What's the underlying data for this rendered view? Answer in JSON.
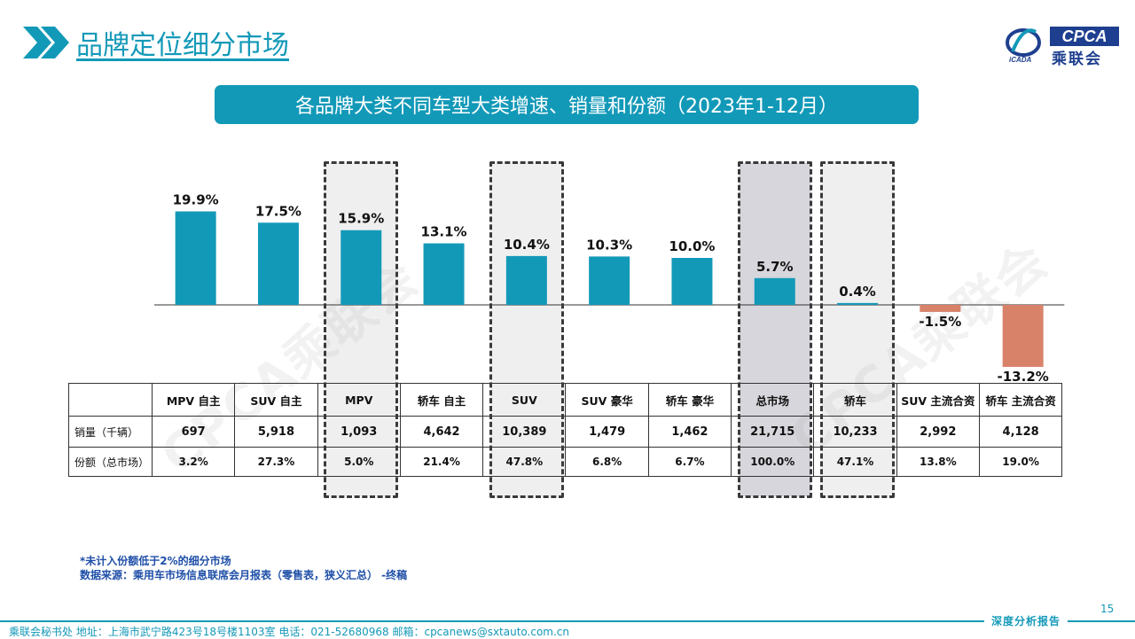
{
  "header": {
    "title": "品牌定位细分市场",
    "logo_text": "CPCA",
    "logo_sub": "乘联会",
    "logo_italic": "iCADA"
  },
  "banner": {
    "text": "各品牌大类不同车型大类增速、销量和份额（2023年1-12月）"
  },
  "watermark": "CPCA乘联会",
  "colors": {
    "positive": "#1399b8",
    "negative": "#d9826a",
    "highlight_light": "#efefef",
    "highlight_dark": "#d6d6dc"
  },
  "chart_data": {
    "type": "bar",
    "categories": [
      "MPV 自主",
      "SUV 自主",
      "MPV",
      "轿车 自主",
      "SUV",
      "SUV 豪华",
      "轿车 豪华",
      "总市场",
      "轿车",
      "SUV 主流合资",
      "轿车 主流合资"
    ],
    "values": [
      19.9,
      17.5,
      15.9,
      13.1,
      10.4,
      10.3,
      10.0,
      5.7,
      0.4,
      -1.5,
      -13.2
    ],
    "value_labels": [
      "19.9%",
      "17.5%",
      "15.9%",
      "13.1%",
      "10.4%",
      "10.3%",
      "10.0%",
      "5.7%",
      "0.4%",
      "-1.5%",
      "-13.2%"
    ],
    "unit": "%",
    "highlighted": [
      "MPV",
      "SUV",
      "总市场",
      "轿车"
    ]
  },
  "table": {
    "rows": [
      {
        "label": "销量（千辆）",
        "values": [
          "697",
          "5,918",
          "1,093",
          "4,642",
          "10,389",
          "1,479",
          "1,462",
          "21,715",
          "10,233",
          "2,992",
          "4,128"
        ]
      },
      {
        "label": "份额（总市场）",
        "values": [
          "3.2%",
          "27.3%",
          "5.0%",
          "21.4%",
          "47.8%",
          "6.8%",
          "6.7%",
          "100.0%",
          "47.1%",
          "13.8%",
          "19.0%"
        ]
      }
    ]
  },
  "notes": {
    "line1": "*未计入份额低于2%的细分市场",
    "line2": "数据来源：乘用车市场信息联席会月报表（零售表，狭义汇总）  -终稿"
  },
  "page_number": "15",
  "footer": {
    "tag": "深度分析报告",
    "text": "乘联会秘书处    地址：上海市武宁路423号18号楼1103室    电话：021-52680968    邮箱：cpcanews@sxtauto.com.cn"
  }
}
